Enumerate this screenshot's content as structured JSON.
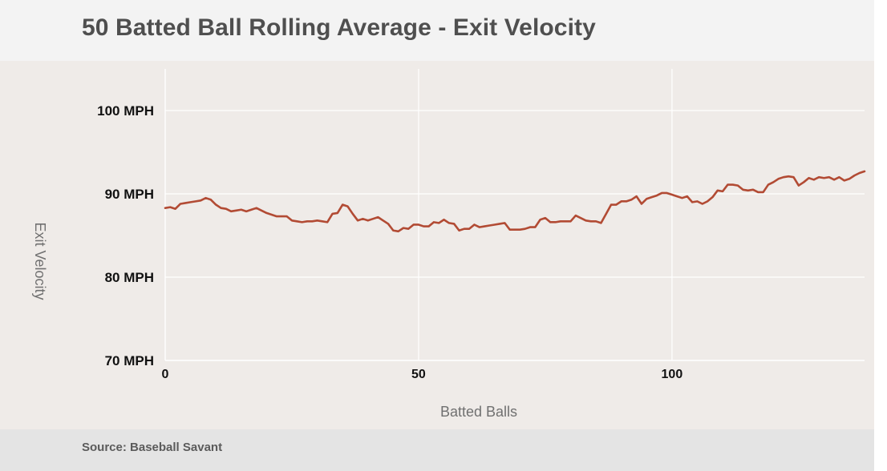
{
  "header": {
    "title": "50 Batted Ball Rolling Average - Exit Velocity"
  },
  "footer": {
    "source": "Source: Baseball Savant"
  },
  "colors": {
    "line": "#b24b34",
    "grid": "#ffffff",
    "background": "#efebe8",
    "header_bg": "#f3f3f3",
    "footer_bg": "#e4e4e4"
  },
  "chart_data": {
    "type": "line",
    "xlabel": "Batted Balls",
    "ylabel": "Exit Velocity",
    "xlim": [
      0,
      138
    ],
    "ylim": [
      70,
      105
    ],
    "grid": true,
    "x_ticks": [
      0,
      50,
      100
    ],
    "x_tick_labels": [
      "0",
      "50",
      "100"
    ],
    "y_ticks": [
      70,
      80,
      90,
      100
    ],
    "y_tick_labels": [
      "70 MPH",
      "80 MPH",
      "90 MPH",
      "100 MPH"
    ],
    "series": [
      {
        "values": [
          88.3,
          88.4,
          88.2,
          88.8,
          88.9,
          89.0,
          89.1,
          89.2,
          89.5,
          89.3,
          88.7,
          88.3,
          88.2,
          87.9,
          88.0,
          88.1,
          87.9,
          88.1,
          88.3,
          88.0,
          87.7,
          87.5,
          87.3,
          87.3,
          87.3,
          86.8,
          86.7,
          86.6,
          86.7,
          86.7,
          86.8,
          86.7,
          86.6,
          87.6,
          87.7,
          88.7,
          88.5,
          87.6,
          86.8,
          87.0,
          86.8,
          87.0,
          87.2,
          86.8,
          86.4,
          85.6,
          85.5,
          85.9,
          85.8,
          86.3,
          86.3,
          86.1,
          86.1,
          86.6,
          86.5,
          86.9,
          86.5,
          86.4,
          85.6,
          85.8,
          85.8,
          86.3,
          86.0,
          86.1,
          86.2,
          86.3,
          86.4,
          86.5,
          85.7,
          85.7,
          85.7,
          85.8,
          86.0,
          86.0,
          86.9,
          87.1,
          86.6,
          86.6,
          86.7,
          86.7,
          86.7,
          87.4,
          87.1,
          86.8,
          86.7,
          86.7,
          86.5,
          87.6,
          88.7,
          88.7,
          89.1,
          89.1,
          89.3,
          89.7,
          88.8,
          89.4,
          89.6,
          89.8,
          90.1,
          90.1,
          89.9,
          89.7,
          89.5,
          89.7,
          89.0,
          89.1,
          88.8,
          89.1,
          89.6,
          90.4,
          90.3,
          91.1,
          91.1,
          91.0,
          90.5,
          90.4,
          90.5,
          90.2,
          90.2,
          91.1,
          91.4,
          91.8,
          92.0,
          92.1,
          92.0,
          91.0,
          91.4,
          91.9,
          91.7,
          92.0,
          91.9,
          92.0,
          91.7,
          92.0,
          91.6,
          91.8,
          92.2,
          92.5,
          92.7
        ]
      }
    ]
  }
}
